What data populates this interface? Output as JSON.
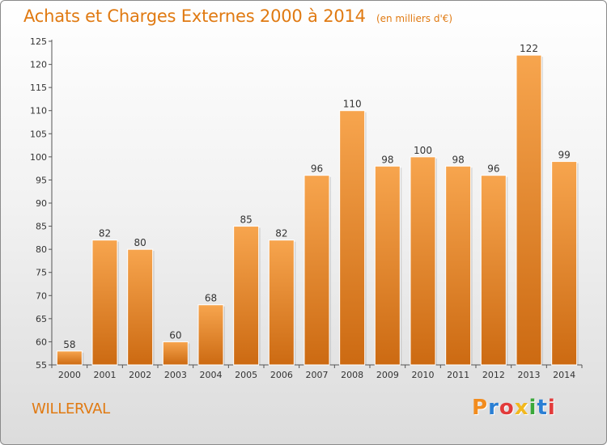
{
  "header": {
    "title": "Achats et Charges Externes 2000 à 2014",
    "unit": "(en milliers d'€)"
  },
  "footer": {
    "commune": "WILLERVAL",
    "logo_text": "Proxiti",
    "logo_colors": [
      "#f28c1e",
      "#2a7fd4",
      "#e23b3b",
      "#f2b81e",
      "#3aa83a",
      "#2a7fd4",
      "#e23b3b"
    ]
  },
  "colors": {
    "bar_top": "#f7a54e",
    "bar_bottom": "#cc6a12",
    "text_accent": "#e07a12"
  },
  "chart_data": {
    "type": "bar",
    "title": "Achats et Charges Externes 2000 à 2014",
    "categories": [
      "2000",
      "2001",
      "2002",
      "2003",
      "2004",
      "2005",
      "2006",
      "2007",
      "2008",
      "2009",
      "2010",
      "2011",
      "2012",
      "2013",
      "2014"
    ],
    "values": [
      58,
      82,
      80,
      60,
      68,
      85,
      82,
      96,
      110,
      98,
      100,
      98,
      96,
      122,
      99
    ],
    "ylim": [
      55,
      125
    ],
    "yticks": [
      55,
      60,
      65,
      70,
      75,
      80,
      85,
      90,
      95,
      100,
      105,
      110,
      115,
      120,
      125
    ],
    "grid": false,
    "data_labels": true
  }
}
